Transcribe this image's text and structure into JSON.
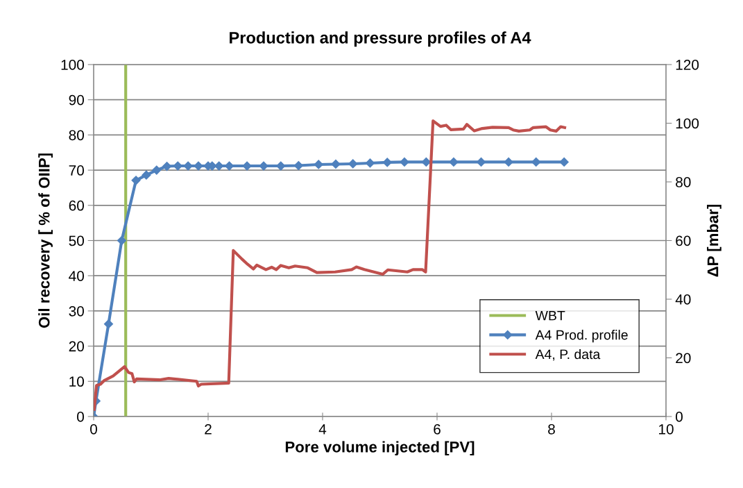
{
  "chart_data": {
    "type": "line",
    "title": "Production and pressure profiles of A4",
    "xlabel": "Pore volume injected [PV]",
    "ylabel": "Oil recovery [ % of OIIP]",
    "y2label": "ΔP [mbar]",
    "xlim": [
      0,
      10
    ],
    "xticks": [
      0,
      2,
      4,
      6,
      8,
      10
    ],
    "ylim": [
      0,
      100
    ],
    "yticks": [
      0,
      10,
      20,
      30,
      40,
      50,
      60,
      70,
      80,
      90,
      100
    ],
    "y2lim": [
      0,
      120
    ],
    "y2ticks": [
      0,
      20,
      40,
      60,
      80,
      100,
      120
    ],
    "grid": "y",
    "legend": "bottom right",
    "series": [
      {
        "name": "WBT",
        "color": "#9bbb59",
        "marker": "none",
        "x": [
          0.56,
          0.56
        ],
        "values": [
          0,
          100
        ]
      },
      {
        "name": "A4 Prod. profile",
        "color": "#4f81bd",
        "marker": "diamond",
        "x": [
          0,
          0.04,
          0.26,
          0.49,
          0.74,
          0.92,
          1.1,
          1.28,
          1.47,
          1.65,
          1.83,
          2.0,
          2.07,
          2.19,
          2.37,
          2.68,
          2.97,
          3.27,
          3.58,
          3.93,
          4.23,
          4.53,
          4.83,
          5.13,
          5.43,
          5.81,
          6.29,
          6.77,
          7.25,
          7.73,
          8.22
        ],
        "values": [
          0,
          4.4,
          26.3,
          50,
          67.1,
          68.6,
          70,
          71.1,
          71.2,
          71.2,
          71.2,
          71.2,
          71.2,
          71.2,
          71.2,
          71.2,
          71.2,
          71.2,
          71.3,
          71.6,
          71.7,
          71.8,
          72.0,
          72.2,
          72.3,
          72.3,
          72.3,
          72.3,
          72.3,
          72.3,
          72.3
        ]
      },
      {
        "name": "A4, P. data",
        "color": "#c0504d",
        "marker": "none",
        "axis": "y2",
        "x": [
          0.01,
          0.05,
          0.12,
          0.18,
          0.34,
          0.54,
          0.61,
          0.67,
          0.71,
          0.75,
          1.15,
          1.31,
          1.8,
          1.83,
          1.88,
          2.36,
          2.44,
          2.59,
          2.69,
          2.79,
          2.85,
          3.01,
          3.11,
          3.19,
          3.27,
          3.41,
          3.52,
          3.74,
          3.9,
          4.22,
          4.51,
          4.59,
          4.73,
          5.05,
          5.14,
          5.48,
          5.58,
          5.74,
          5.8,
          5.93,
          6.06,
          6.16,
          6.24,
          6.46,
          6.52,
          6.65,
          6.79,
          6.97,
          7.25,
          7.33,
          7.43,
          7.62,
          7.68,
          7.9,
          7.98,
          8.08,
          8.16,
          8.23
        ],
        "values": [
          2.4,
          10.6,
          11.0,
          12.2,
          13.8,
          17.0,
          15.0,
          14.6,
          11.8,
          12.8,
          12.5,
          13.0,
          12.0,
          10.4,
          11.0,
          11.4,
          56.6,
          53.7,
          51.9,
          50.3,
          51.6,
          50.1,
          50.9,
          50.1,
          51.5,
          50.7,
          51.3,
          50.7,
          49.1,
          49.3,
          50.1,
          51.0,
          50.1,
          48.5,
          50.0,
          49.3,
          50.1,
          50.1,
          49.3,
          100.8,
          98.9,
          99.3,
          97.8,
          98.0,
          99.6,
          97.4,
          98.2,
          98.6,
          98.5,
          97.7,
          97.3,
          97.7,
          98.5,
          98.8,
          97.7,
          97.3,
          98.8,
          98.5
        ]
      }
    ]
  }
}
